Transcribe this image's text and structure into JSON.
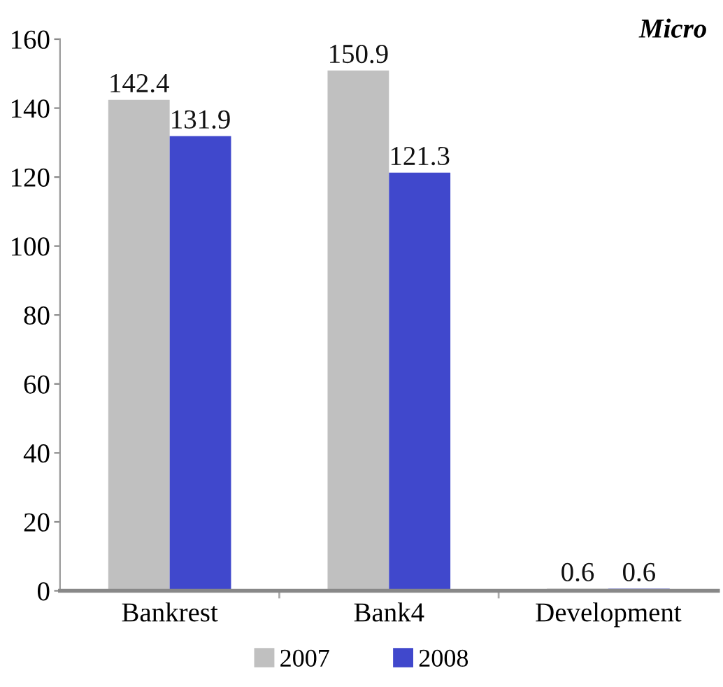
{
  "chart_data": {
    "type": "bar",
    "title": "Micro",
    "categories": [
      "Bankrest",
      "Bank4",
      "Development"
    ],
    "series": [
      {
        "name": "2007",
        "color": "#c0c0c0",
        "values": [
          142.4,
          150.9,
          0.6
        ]
      },
      {
        "name": "2008",
        "color": "#4048cc",
        "values": [
          131.9,
          121.3,
          0.6
        ]
      }
    ],
    "ylim": [
      0,
      160
    ],
    "yticks": [
      0,
      20,
      40,
      60,
      80,
      100,
      120,
      140,
      160
    ],
    "data_labels": true,
    "legend": "bottom",
    "grid": false
  }
}
